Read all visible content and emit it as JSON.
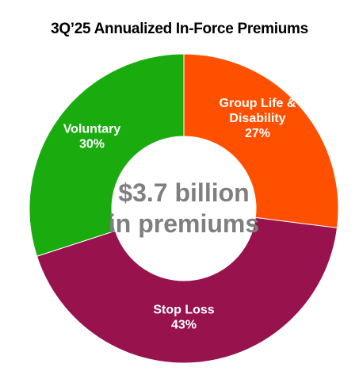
{
  "chart_data": {
    "type": "pie",
    "title": "3Q’25 Annualized In-Force Premiums",
    "center_label": [
      "$3.7 billion",
      "in premiums"
    ],
    "slices": [
      {
        "name": "Group Life & Disability",
        "label_lines": [
          "Group Life &",
          "Disability"
        ],
        "value": 27,
        "value_label": "27%",
        "color": "#ff5000"
      },
      {
        "name": "Stop Loss",
        "label_lines": [
          "Stop Loss"
        ],
        "value": 43,
        "value_label": "43%",
        "color": "#98124e"
      },
      {
        "name": "Voluntary",
        "label_lines": [
          "Voluntary"
        ],
        "value": 30,
        "value_label": "30%",
        "color": "#1aab0f"
      }
    ],
    "legend": "none"
  }
}
